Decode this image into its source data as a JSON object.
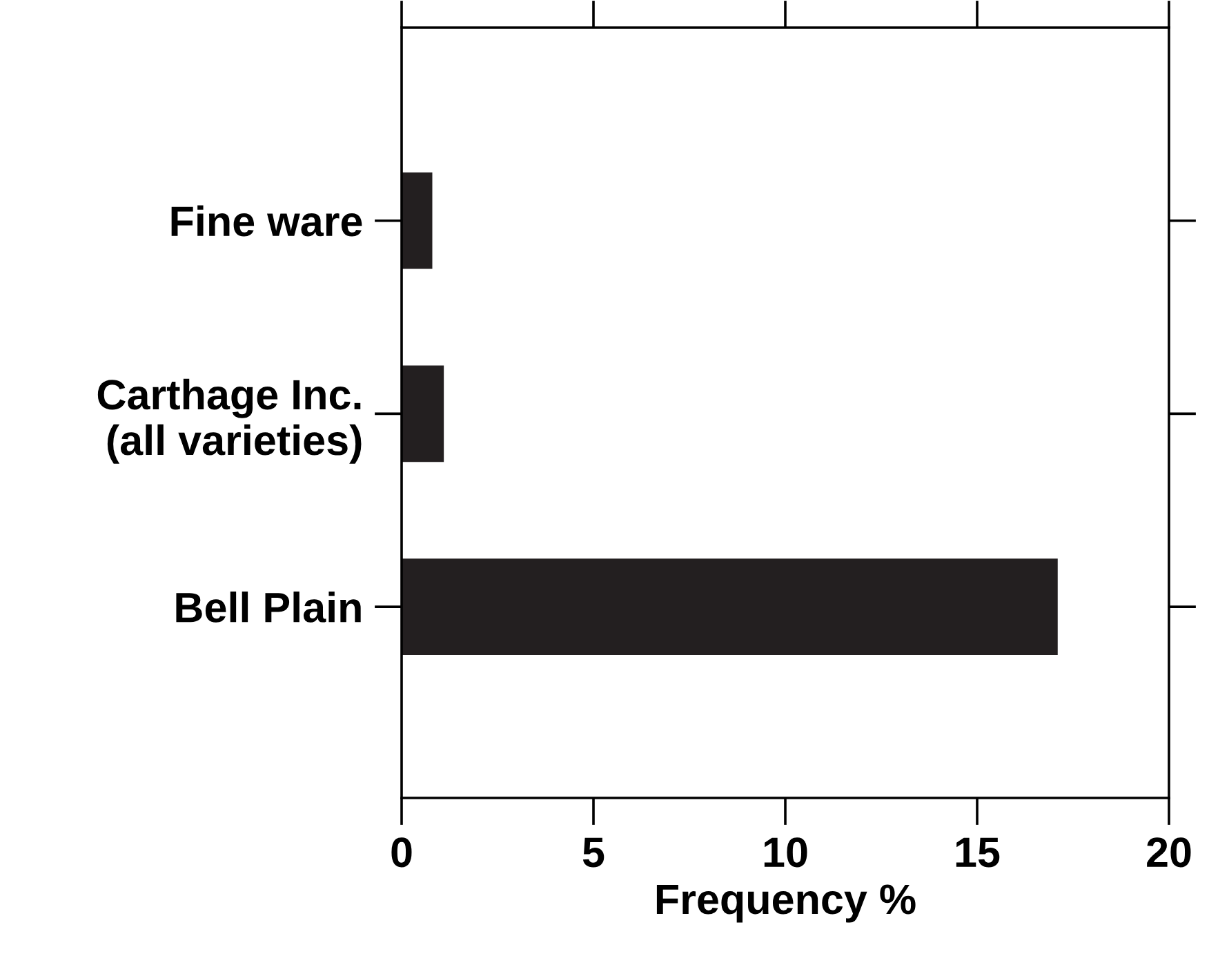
{
  "chart_data": {
    "type": "bar",
    "orientation": "horizontal",
    "xlabel": "Frequency %",
    "categories": [
      "Fine ware",
      "Carthage Inc.\n(all varieties)",
      "Bell Plain"
    ],
    "values": [
      0.8,
      1.1,
      17.1
    ],
    "color": "#231f20",
    "xlim": [
      0,
      20
    ],
    "xticks": [
      0,
      5,
      10,
      15,
      20
    ],
    "grid": false,
    "legend": false
  }
}
